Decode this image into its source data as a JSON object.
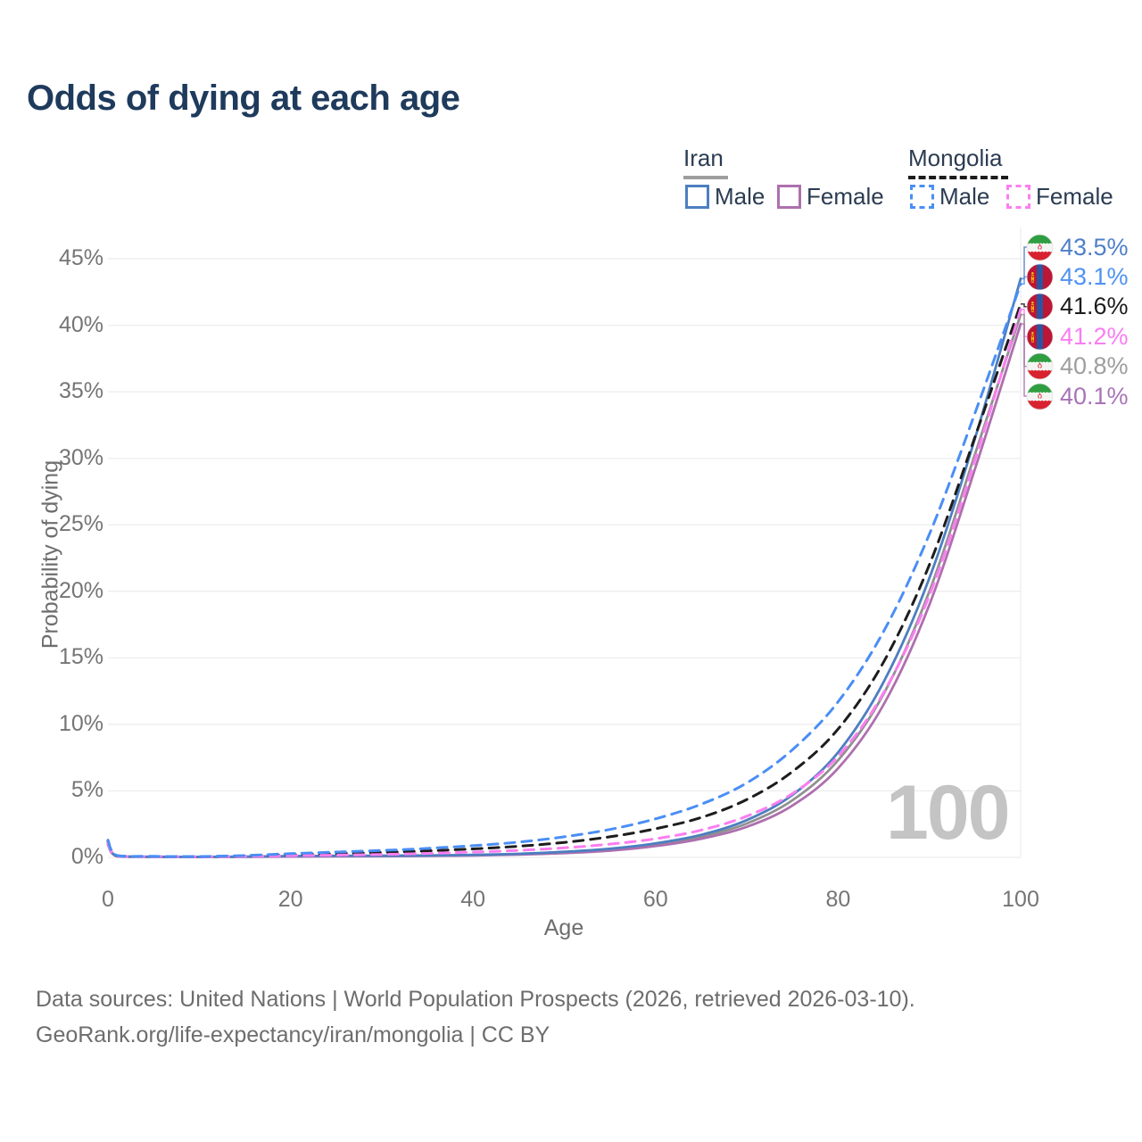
{
  "title": "Odds of dying at each age",
  "legend": {
    "iran": {
      "label": "Iran",
      "male": "Male",
      "female": "Female"
    },
    "mongolia": {
      "label": "Mongolia",
      "male": "Male",
      "female": "Female"
    }
  },
  "watermark": "100",
  "source_line1": "Data sources: United Nations | World Population Prospects (2026, retrieved 2026-03-10).",
  "source_line2": "GeoRank.org/life-expectancy/iran/mongolia | CC BY",
  "colors": {
    "title": "#1e3a5c",
    "grid": "#ececec",
    "tick_text": "#757575",
    "axis_title_text": "#6e6e6e",
    "watermark": "#c4c4c4",
    "source_text": "#6d6d6d",
    "iran_underline": "#9e9e9e",
    "mongolia_underline": "#1c1c1c"
  },
  "chart_data": {
    "type": "line",
    "title": "Odds of dying at each age",
    "xlabel": "Age",
    "ylabel": "Probability of dying",
    "xlim": [
      0,
      100
    ],
    "ylim": [
      0,
      46.5
    ],
    "grid": true,
    "legend_position": "top-right",
    "yticks": [
      {
        "v": 0,
        "label": "0%"
      },
      {
        "v": 5,
        "label": "5%"
      },
      {
        "v": 10,
        "label": "10%"
      },
      {
        "v": 15,
        "label": "15%"
      },
      {
        "v": 20,
        "label": "20%"
      },
      {
        "v": 25,
        "label": "25%"
      },
      {
        "v": 30,
        "label": "30%"
      },
      {
        "v": 35,
        "label": "35%"
      },
      {
        "v": 40,
        "label": "40%"
      },
      {
        "v": 45,
        "label": "45%"
      }
    ],
    "xticks": [
      {
        "v": 0,
        "label": "0"
      },
      {
        "v": 20,
        "label": "20"
      },
      {
        "v": 40,
        "label": "40"
      },
      {
        "v": 60,
        "label": "60"
      },
      {
        "v": 80,
        "label": "80"
      },
      {
        "v": 100,
        "label": "100"
      }
    ],
    "x": [
      0,
      1,
      5,
      10,
      15,
      20,
      25,
      30,
      35,
      40,
      45,
      50,
      55,
      60,
      65,
      70,
      75,
      80,
      85,
      90,
      95,
      100
    ],
    "series": [
      {
        "name": "Iran",
        "country": "iran",
        "style": "solid",
        "color": "#909090",
        "end_label": "40.8%",
        "end_label_color": "#9e9e9e",
        "values": [
          1.0,
          0.09,
          0.045,
          0.035,
          0.05,
          0.08,
          0.1,
          0.11,
          0.13,
          0.17,
          0.24,
          0.37,
          0.58,
          0.95,
          1.55,
          2.55,
          4.3,
          7.3,
          12.3,
          20.0,
          30.3,
          40.8
        ]
      },
      {
        "name": "Iran Female",
        "country": "iran",
        "style": "solid",
        "color": "#ae6fae",
        "end_label": "40.1%",
        "end_label_color": "#a873b8",
        "values": [
          0.95,
          0.08,
          0.04,
          0.03,
          0.04,
          0.06,
          0.08,
          0.09,
          0.11,
          0.15,
          0.21,
          0.32,
          0.5,
          0.85,
          1.4,
          2.3,
          3.9,
          6.7,
          11.5,
          19.0,
          29.2,
          40.1
        ]
      },
      {
        "name": "Iran Male",
        "country": "iran",
        "style": "solid",
        "color": "#4d7fc0",
        "end_label": "43.5%",
        "end_label_color": "#4e7fca",
        "values": [
          1.1,
          0.1,
          0.05,
          0.04,
          0.06,
          0.1,
          0.12,
          0.13,
          0.15,
          0.19,
          0.27,
          0.42,
          0.65,
          1.05,
          1.7,
          2.8,
          4.7,
          7.9,
          13.2,
          21.0,
          31.5,
          43.5
        ]
      },
      {
        "name": "Mongolia",
        "country": "mongolia",
        "style": "dashed",
        "color": "#1d1d1d",
        "end_label": "41.6%",
        "end_label_color": "#1c1c1c",
        "values": [
          1.2,
          0.13,
          0.07,
          0.06,
          0.11,
          0.2,
          0.28,
          0.37,
          0.49,
          0.64,
          0.84,
          1.13,
          1.55,
          2.15,
          3.0,
          4.35,
          6.45,
          9.65,
          14.7,
          22.0,
          31.6,
          41.6
        ]
      },
      {
        "name": "Mongolia Female",
        "country": "mongolia",
        "style": "dashed",
        "color": "#fb7ef0",
        "end_label": "41.2%",
        "end_label_color": "#f97df2",
        "values": [
          1.1,
          0.12,
          0.06,
          0.05,
          0.08,
          0.13,
          0.17,
          0.22,
          0.3,
          0.4,
          0.53,
          0.72,
          1.0,
          1.4,
          2.05,
          3.1,
          4.8,
          7.6,
          12.4,
          19.7,
          29.9,
          41.2
        ]
      },
      {
        "name": "Mongolia Male",
        "country": "mongolia",
        "style": "dashed",
        "color": "#4a8ef5",
        "end_label": "43.1%",
        "end_label_color": "#4e93f2",
        "values": [
          1.3,
          0.15,
          0.08,
          0.07,
          0.14,
          0.28,
          0.4,
          0.52,
          0.68,
          0.88,
          1.15,
          1.55,
          2.1,
          2.9,
          4.0,
          5.6,
          8.1,
          11.7,
          17.0,
          24.3,
          33.4,
          43.1
        ]
      }
    ]
  }
}
